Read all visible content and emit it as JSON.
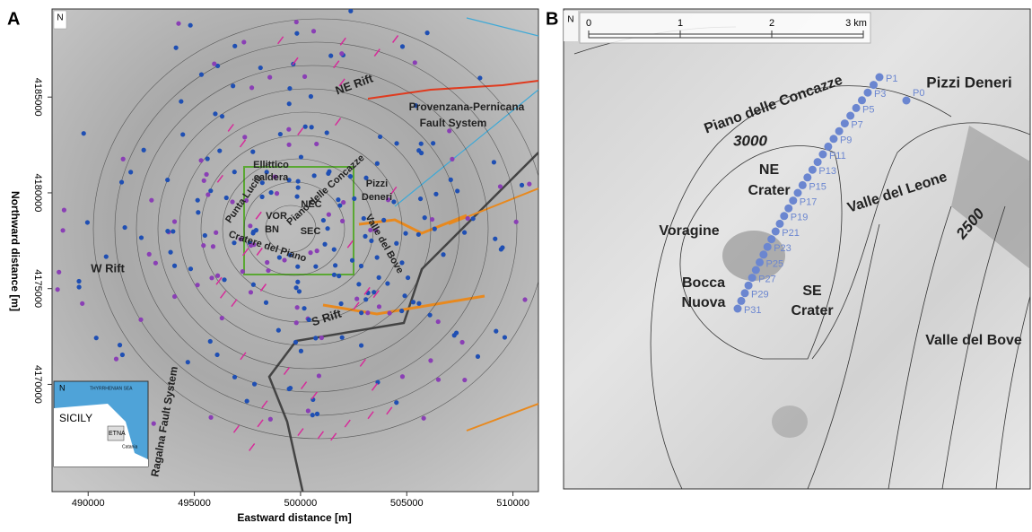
{
  "panel_a": {
    "label": "A",
    "x_axis": {
      "title": "Eastward distance [m]",
      "lim": [
        488300,
        511200
      ],
      "ticks": [
        490000,
        495000,
        500000,
        505000,
        510000
      ]
    },
    "y_axis": {
      "title": "Northward distance [m]",
      "lim": [
        4164400,
        4189600
      ],
      "ticks": [
        4170000,
        4175000,
        4180000,
        4185000
      ]
    },
    "north": "N",
    "places": [
      "NE Rift",
      "Provenzana-Pernicana",
      "Fault System",
      "Ellittico",
      "caldera",
      "Piano delle Concazze",
      "Pizzi",
      "Deneri",
      "Punta Lucia",
      "NEC",
      "VOR",
      "BN",
      "SEC",
      "Cratere del Piano",
      "Valle del Bove",
      "W Rift",
      "S Rift",
      "Ragalna Fault System"
    ],
    "inset": {
      "north": "N",
      "sea": "THYRRHENIAN SEA",
      "island": "SICILY",
      "volcano": "ETNA",
      "city": "Catania"
    }
  },
  "panel_b": {
    "label": "B",
    "north": "N",
    "scale": {
      "ticks": [
        0,
        1,
        2,
        {
          "value": 3,
          "label": "3 km"
        }
      ]
    },
    "places": [
      "Pizzi Deneri",
      "Piano delle Concazze",
      "3000",
      "NE",
      "Crater",
      "Valle del Leone",
      "2500",
      "Voragine",
      "Bocca",
      "Nuova",
      "SE",
      "Crater",
      "Valle del Bove"
    ],
    "profile_points": [
      "P0",
      "P1",
      null,
      "P3",
      null,
      "P5",
      null,
      "P7",
      null,
      "P9",
      null,
      "P11",
      null,
      "P13",
      null,
      "P15",
      null,
      "P17",
      null,
      "P19",
      null,
      "P21",
      null,
      "P23",
      null,
      "P25",
      null,
      "P27",
      null,
      "P29",
      null,
      "P31"
    ]
  }
}
